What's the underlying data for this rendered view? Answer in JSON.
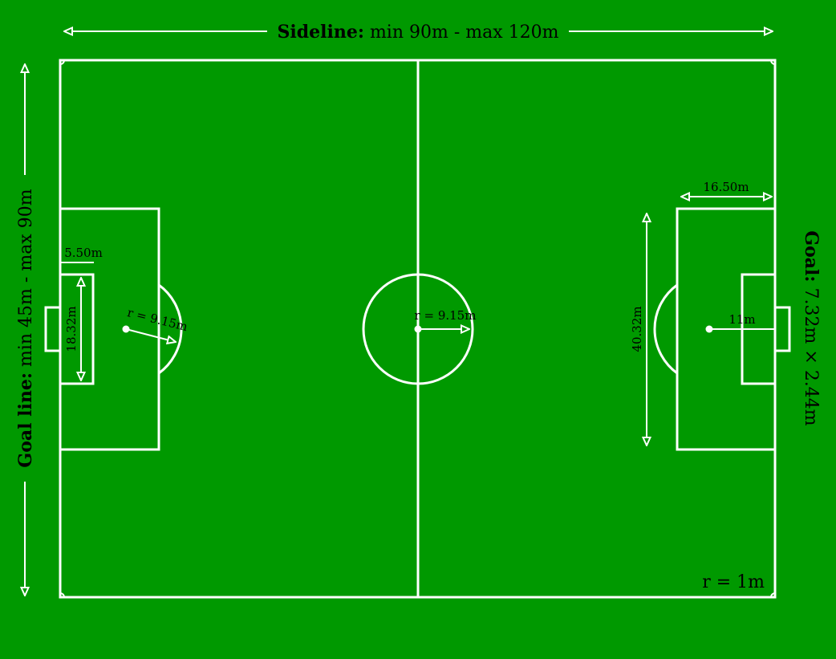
{
  "colors": {
    "field": "#009900",
    "lines": "#ffffff",
    "text": "#000000"
  },
  "labels": {
    "sideline_bold": "Sideline:",
    "sideline_value": "min 90m - max 120m",
    "goalline_bold": "Goal line:",
    "goalline_value": "min 45m - max 90m",
    "goal_bold": "Goal:",
    "goal_value": "7.32m × 2.44m",
    "corner_radius": "r = 1m",
    "goal_area_depth": "5.50m",
    "goal_area_width": "18.32m",
    "penalty_arc_radius": "r = 9.15m",
    "center_circle_radius": "r = 9.15m",
    "penalty_area_depth": "16.50m",
    "penalty_area_width": "40.32m",
    "penalty_spot_distance": "11m"
  }
}
